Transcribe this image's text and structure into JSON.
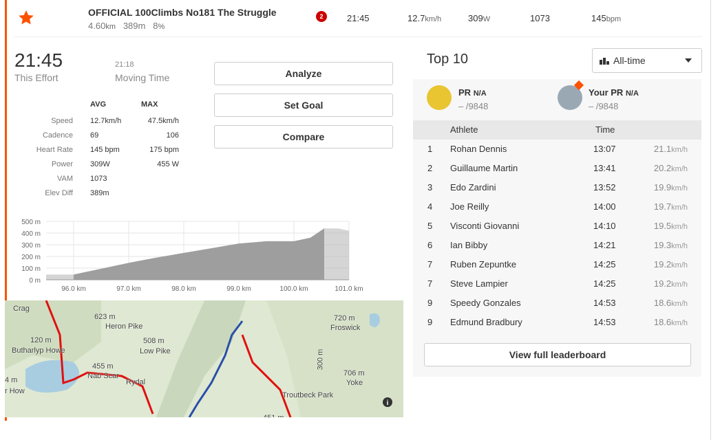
{
  "header": {
    "title": "OFFICIAL 100Climbs No181 The Struggle",
    "distance": "4.60",
    "distance_unit": "km",
    "elevation": "389m",
    "grade": "8",
    "grade_unit": "%",
    "badge": "2",
    "time": "21:45",
    "speed": "12.7",
    "speed_unit": "km/h",
    "power": "309",
    "power_unit": "W",
    "vam": "1073",
    "heart_rate": "145",
    "heart_rate_unit": "bpm"
  },
  "effort": {
    "time": "21:45",
    "time_label": "This Effort",
    "moving_time": "21:18",
    "moving_label": "Moving Time"
  },
  "stats": {
    "headers": [
      "AVG",
      "MAX"
    ],
    "rows": [
      [
        "Speed",
        "12.7km/h",
        "47.5km/h"
      ],
      [
        "Cadence",
        "69",
        "106"
      ],
      [
        "Heart Rate",
        "145 bpm",
        "175 bpm"
      ],
      [
        "Power",
        "309W",
        "455 W"
      ],
      [
        "VAM",
        "1073"
      ],
      [
        "Elev Diff",
        "389m"
      ]
    ]
  },
  "buttons": [
    "Analyze",
    "Set Goal",
    "Compare"
  ],
  "chart_data": {
    "type": "area",
    "color": "#b3b3b3",
    "highlight_color": "#9e9e9e",
    "x": [
      95.5,
      96.0,
      96.5,
      97.0,
      97.5,
      98.0,
      98.5,
      99.0,
      99.5,
      100.0,
      100.3,
      100.55,
      100.8,
      101.0
    ],
    "values": [
      45,
      45,
      95,
      145,
      190,
      230,
      270,
      310,
      330,
      330,
      360,
      440,
      440,
      420
    ],
    "highlight_x": [
      96.0,
      100.55
    ],
    "xlim": [
      95.5,
      101.0
    ],
    "ylim": [
      0,
      500
    ],
    "xticks": [
      {
        "value": 96,
        "label": "96.0 km"
      },
      {
        "value": 97,
        "label": "97.0 km"
      },
      {
        "value": 98,
        "label": "98.0 km"
      },
      {
        "value": 99,
        "label": "99.0 km"
      },
      {
        "value": 100,
        "label": "100.0 km"
      },
      {
        "value": 101,
        "label": "101.0 km"
      }
    ],
    "yticks": [
      {
        "value": 0,
        "label": "0 m"
      },
      {
        "value": 100,
        "label": "100 m"
      },
      {
        "value": 200,
        "label": "200 m"
      },
      {
        "value": 300,
        "label": "300 m"
      },
      {
        "value": 400,
        "label": "400 m"
      },
      {
        "value": 500,
        "label": "500 m"
      }
    ],
    "grid": true
  },
  "map": {
    "labels": [
      "Crag",
      "623 m",
      "Heron Pike",
      "120 m",
      "Butharlyp Howe",
      "508 m",
      "Low Pike",
      "455 m",
      "Nab Scar",
      "Rydal",
      "4 m",
      "r How",
      "720 m",
      "Froswick",
      "706 m",
      "Yoke",
      "300 m",
      "Troutbeck Park",
      "451 m"
    ]
  },
  "leaderboard": {
    "title": "Top 10",
    "filter": "All-time",
    "pr": {
      "label": "PR",
      "value": "N/A",
      "rank": "– /9848"
    },
    "your_pr": {
      "label": "Your PR",
      "value": "N/A",
      "rank": "– /9848"
    },
    "headers": [
      "Athlete",
      "Time"
    ],
    "rows": [
      [
        "1",
        "Rohan Dennis",
        "13:07",
        "21.1",
        "km/h"
      ],
      [
        "2",
        "Guillaume Martin",
        "13:41",
        "20.2",
        "km/h"
      ],
      [
        "3",
        "Edo Zardini",
        "13:52",
        "19.9",
        "km/h"
      ],
      [
        "4",
        "Joe Reilly",
        "14:00",
        "19.7",
        "km/h"
      ],
      [
        "5",
        "Visconti Giovanni",
        "14:10",
        "19.5",
        "km/h"
      ],
      [
        "6",
        "Ian Bibby",
        "14:21",
        "19.3",
        "km/h"
      ],
      [
        "7",
        "Ruben Zepuntke",
        "14:25",
        "19.2",
        "km/h"
      ],
      [
        "7",
        "Steve Lampier",
        "14:25",
        "19.2",
        "km/h"
      ],
      [
        "9",
        "Speedy Gonzales",
        "14:53",
        "18.6",
        "km/h"
      ],
      [
        "9",
        "Edmund Bradbury",
        "14:53",
        "18.6",
        "km/h"
      ]
    ],
    "button": "View full leaderboard"
  }
}
